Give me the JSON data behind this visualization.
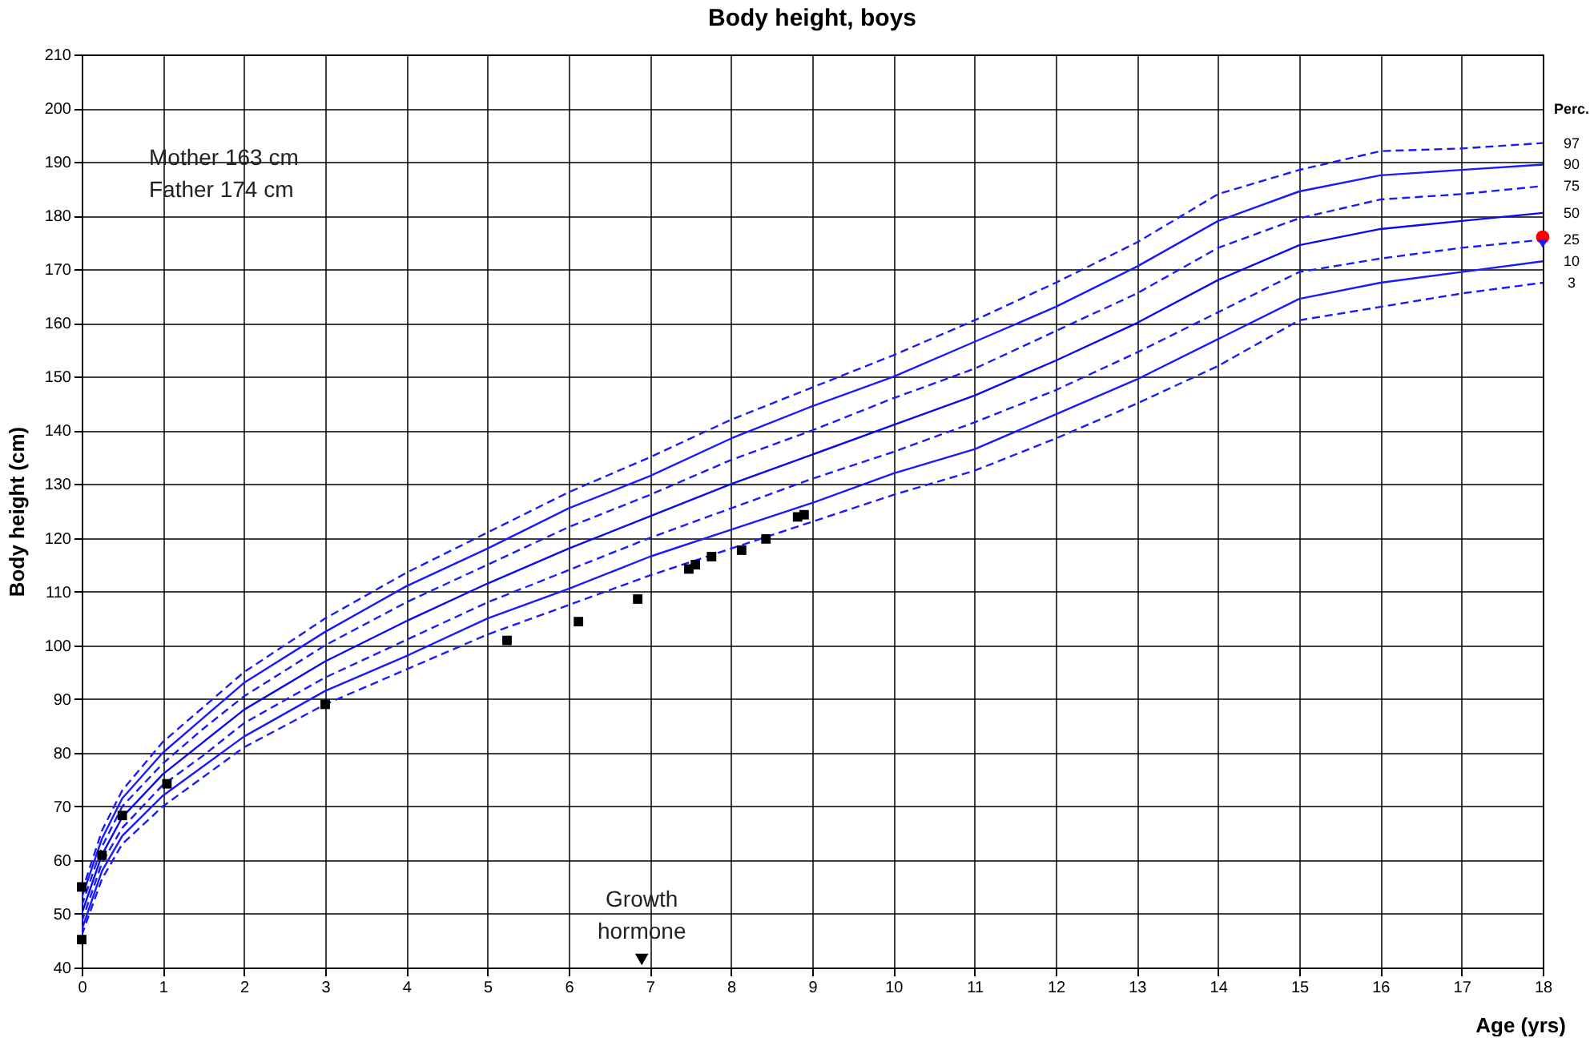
{
  "chart_data": {
    "type": "line",
    "title": "Body height, boys",
    "xlabel": "Age (yrs)",
    "ylabel": "Body height (cm)",
    "legend_title": "Perc.",
    "x": [
      0,
      0.25,
      0.5,
      1,
      1.5,
      2,
      3,
      4,
      5,
      6,
      7,
      8,
      9,
      10,
      11,
      12,
      13,
      14,
      15,
      16,
      17,
      18
    ],
    "series": [
      {
        "name": "97",
        "color": "#1a1aff",
        "line_style": "dashed",
        "values": [
          54,
          65.5,
          73,
          82,
          88.5,
          95,
          105,
          113.5,
          121,
          128.5,
          135,
          142,
          148,
          154,
          160.5,
          167.5,
          175,
          184,
          188.5,
          192,
          192.5,
          193.5
        ]
      },
      {
        "name": "90",
        "color": "#1a1aff",
        "line_style": "solid",
        "values": [
          53,
          64,
          71.5,
          80,
          86.5,
          93,
          102.5,
          111,
          118,
          125.5,
          131.5,
          138.5,
          144.5,
          150,
          156.5,
          163,
          170.5,
          179,
          184.5,
          187.5,
          188.5,
          189.5
        ]
      },
      {
        "name": "75",
        "color": "#1a1aff",
        "line_style": "dashed",
        "values": [
          51.5,
          62.5,
          70,
          78,
          84.5,
          90.5,
          100,
          108,
          115,
          122,
          128,
          134.5,
          140,
          146,
          151.5,
          158.5,
          165.5,
          174,
          179.5,
          183,
          184,
          185.5
        ]
      },
      {
        "name": "50",
        "color": "#0a0aee",
        "line_style": "solid",
        "values": [
          50,
          61,
          68,
          76,
          82,
          88,
          97,
          104.5,
          111.5,
          118,
          124,
          130,
          135.5,
          141,
          146.5,
          153,
          160,
          168,
          174.5,
          177.5,
          179,
          180.5
        ]
      },
      {
        "name": "25",
        "color": "#1a1aff",
        "line_style": "dashed",
        "values": [
          48.5,
          59.5,
          66,
          74,
          79.5,
          85.5,
          94,
          101,
          108,
          114,
          120,
          125.5,
          131,
          136,
          141.5,
          147.5,
          154.5,
          162,
          169.5,
          172,
          174,
          175.5
        ]
      },
      {
        "name": "10",
        "color": "#1a1aff",
        "line_style": "solid",
        "values": [
          47,
          58,
          64.5,
          72,
          77.5,
          83,
          91.5,
          98,
          105,
          110.5,
          116.5,
          121.5,
          126.5,
          132,
          136.5,
          143,
          149.5,
          157,
          164.5,
          167.5,
          169.5,
          171.5
        ]
      },
      {
        "name": "3",
        "color": "#1a1aff",
        "line_style": "dashed",
        "values": [
          46,
          56.5,
          63,
          70,
          75.5,
          81,
          89,
          95.5,
          102,
          107.5,
          113,
          118,
          123,
          128,
          132.5,
          138.5,
          145,
          152,
          160.5,
          163,
          165.5,
          167.5
        ]
      },
      {
        "type": "scatter",
        "marker": "square",
        "color": "#000000",
        "x": [
          0,
          0,
          0.25,
          0.5,
          1.05,
          3,
          5.24,
          6.12,
          6.85,
          7.48,
          7.56,
          7.76,
          8.13,
          8.43,
          8.82,
          8.9
        ],
        "values": [
          55,
          45.2,
          60.9,
          68.3,
          74.2,
          89,
          100.9,
          104.4,
          108.6,
          114.2,
          115,
          116.5,
          117.7,
          119.8,
          123.9,
          124.3
        ]
      },
      {
        "type": "scatter",
        "marker": "circle",
        "color": "#ff0000",
        "x": [
          18
        ],
        "values": [
          176
        ]
      },
      {
        "type": "scatter",
        "marker": "triangle",
        "color": "#1a1aff",
        "x": [
          18
        ],
        "values": [
          174.7
        ]
      }
    ],
    "xlim": [
      0,
      18
    ],
    "xticks": [
      0,
      1,
      2,
      3,
      4,
      5,
      6,
      7,
      8,
      9,
      10,
      11,
      12,
      13,
      14,
      15,
      16,
      17,
      18
    ],
    "ylim": [
      40,
      210
    ],
    "yticks": [
      40,
      50,
      60,
      70,
      80,
      90,
      100,
      110,
      120,
      130,
      140,
      150,
      160,
      170,
      180,
      190,
      200,
      210
    ],
    "grid": true,
    "annotations": [
      "Mother 163 cm",
      "Father 174 cm",
      {
        "text": "Growth hormone",
        "x": 6.9,
        "y": 41.5
      }
    ]
  }
}
